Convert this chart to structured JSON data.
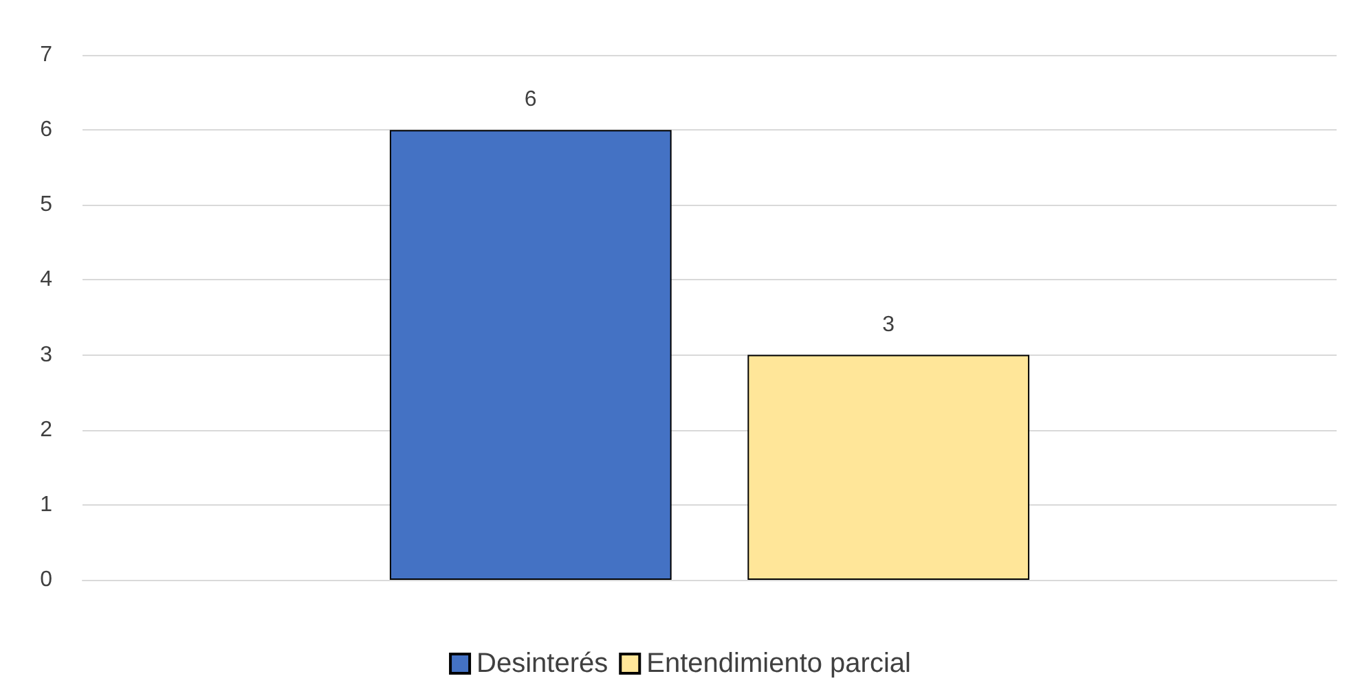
{
  "chart_data": {
    "type": "bar",
    "categories": [
      null
    ],
    "series": [
      {
        "name": "Desinterés",
        "color": "#4472c4",
        "values": [
          6
        ]
      },
      {
        "name": "Entendimiento parcial",
        "color": "#ffe699",
        "values": [
          3
        ]
      }
    ],
    "ylim": [
      0,
      7
    ],
    "yticks": [
      0,
      1,
      2,
      3,
      4,
      5,
      6,
      7
    ],
    "grid": "y",
    "legend": "bottom",
    "data_labels": true
  }
}
